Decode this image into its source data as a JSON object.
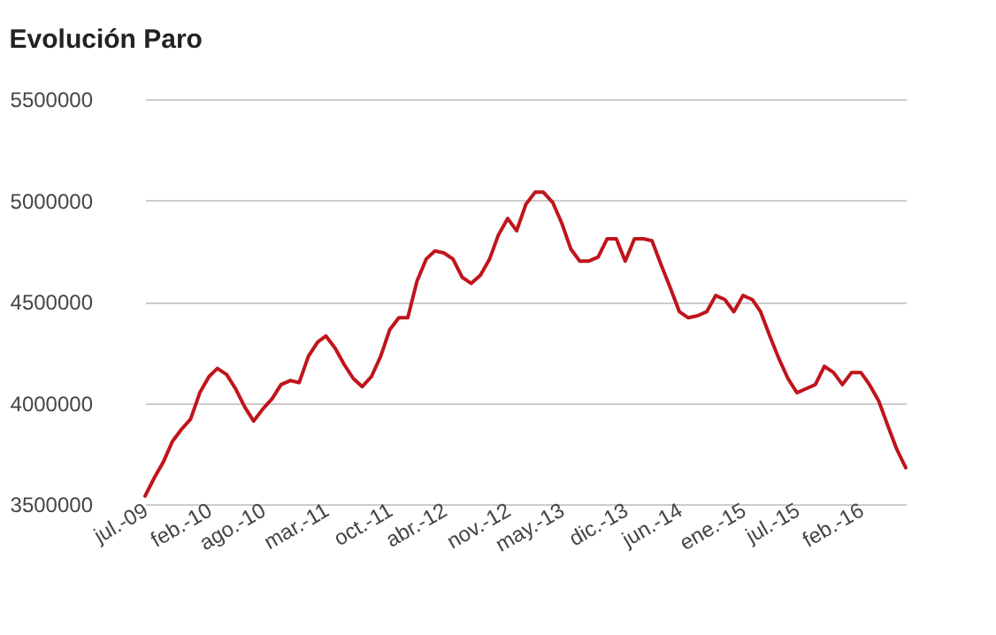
{
  "chart_data": {
    "type": "line",
    "title": "Evolución Paro",
    "x": [
      "2009-07",
      "2009-08",
      "2009-09",
      "2009-10",
      "2009-11",
      "2009-12",
      "2010-01",
      "2010-02",
      "2010-03",
      "2010-04",
      "2010-05",
      "2010-06",
      "2010-07",
      "2010-08",
      "2010-09",
      "2010-10",
      "2010-11",
      "2010-12",
      "2011-01",
      "2011-02",
      "2011-03",
      "2011-04",
      "2011-05",
      "2011-06",
      "2011-07",
      "2011-08",
      "2011-09",
      "2011-10",
      "2011-11",
      "2011-12",
      "2012-01",
      "2012-02",
      "2012-03",
      "2012-04",
      "2012-05",
      "2012-06",
      "2012-07",
      "2012-08",
      "2012-09",
      "2012-10",
      "2012-11",
      "2012-12",
      "2013-01",
      "2013-02",
      "2013-03",
      "2013-04",
      "2013-05",
      "2013-06",
      "2013-07",
      "2013-08",
      "2013-09",
      "2013-10",
      "2013-11",
      "2013-12",
      "2014-01",
      "2014-02",
      "2014-03",
      "2014-04",
      "2014-05",
      "2014-06",
      "2014-07",
      "2014-08",
      "2014-09",
      "2014-10",
      "2014-11",
      "2014-12",
      "2015-01",
      "2015-02",
      "2015-03",
      "2015-04",
      "2015-05",
      "2015-06",
      "2015-07",
      "2015-08",
      "2015-09",
      "2015-10",
      "2015-11",
      "2015-12",
      "2016-01",
      "2016-02",
      "2016-03",
      "2016-04",
      "2016-05",
      "2016-06",
      "2016-07"
    ],
    "series": [
      {
        "color": "#c0141c",
        "values": [
          3540000,
          3630000,
          3710000,
          3810000,
          3870000,
          3920000,
          4050000,
          4130000,
          4170000,
          4140000,
          4070000,
          3980000,
          3910000,
          3970000,
          4020000,
          4090000,
          4110000,
          4100000,
          4230000,
          4300000,
          4330000,
          4270000,
          4190000,
          4120000,
          4080000,
          4130000,
          4230000,
          4360000,
          4420000,
          4420000,
          4600000,
          4710000,
          4750000,
          4740000,
          4710000,
          4620000,
          4590000,
          4630000,
          4710000,
          4830000,
          4910000,
          4850000,
          4980000,
          5040000,
          5040000,
          4990000,
          4890000,
          4760000,
          4700000,
          4700000,
          4720000,
          4810000,
          4810000,
          4700000,
          4810000,
          4810000,
          4800000,
          4680000,
          4570000,
          4450000,
          4420000,
          4430000,
          4450000,
          4530000,
          4510000,
          4450000,
          4530000,
          4510000,
          4450000,
          4330000,
          4220000,
          4120000,
          4050000,
          4070000,
          4090000,
          4180000,
          4150000,
          4090000,
          4150000,
          4150000,
          4090000,
          4010000,
          3890000,
          3770000,
          3680000
        ]
      }
    ],
    "xlim": [
      "2009-07",
      "2016-07"
    ],
    "xticks": [
      {
        "value": "2009-07",
        "label": "jul.-09"
      },
      {
        "value": "2010-02",
        "label": "feb.-10"
      },
      {
        "value": "2010-08",
        "label": "ago.-10"
      },
      {
        "value": "2011-03",
        "label": "mar.-11"
      },
      {
        "value": "2011-10",
        "label": "oct.-11"
      },
      {
        "value": "2012-04",
        "label": "abr.-12"
      },
      {
        "value": "2012-11",
        "label": "nov.-12"
      },
      {
        "value": "2013-05",
        "label": "may.-13"
      },
      {
        "value": "2013-12",
        "label": "dic.-13"
      },
      {
        "value": "2014-06",
        "label": "jun.-14"
      },
      {
        "value": "2015-01",
        "label": "ene.-15"
      },
      {
        "value": "2015-07",
        "label": "jul.-15"
      },
      {
        "value": "2016-02",
        "label": "feb.-16"
      }
    ],
    "ylim": [
      3500000,
      5500000
    ],
    "yticks": [
      3500000,
      4000000,
      4500000,
      5000000,
      5500000
    ],
    "grid": "y",
    "marker": "none",
    "line_style": "solid"
  }
}
